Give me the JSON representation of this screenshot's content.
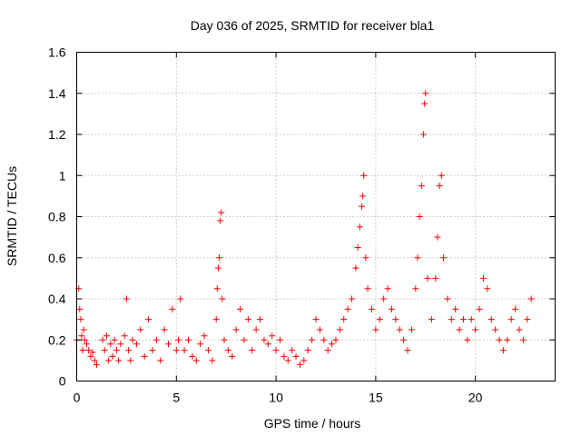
{
  "chart_data": {
    "type": "scatter",
    "title": "Day 036 of 2025, SRMTID for receiver bla1",
    "xlabel": "GPS time / hours",
    "ylabel": "SRMTID / TECUs",
    "xlim": [
      0,
      24
    ],
    "ylim": [
      0,
      1.6
    ],
    "xticks": [
      0,
      5,
      10,
      15,
      20
    ],
    "xtick_labels": [
      "0",
      "5",
      "10",
      "15",
      "20"
    ],
    "yticks": [
      0,
      0.2,
      0.4,
      0.6,
      0.8,
      1.0,
      1.2,
      1.4,
      1.6
    ],
    "ytick_labels": [
      "0",
      "0.2",
      "0.4",
      "0.6",
      "0.8",
      "1",
      "1.2",
      "1.4",
      "1.6"
    ],
    "grid": true,
    "marker": "+",
    "color": "#ff0000",
    "series": [
      {
        "name": "SRMTID",
        "x": [
          0.0,
          0.1,
          0.15,
          0.2,
          0.25,
          0.3,
          0.35,
          0.4,
          0.5,
          0.6,
          0.7,
          0.8,
          0.9,
          1.0,
          1.3,
          1.4,
          1.5,
          1.6,
          1.7,
          1.8,
          1.9,
          2.0,
          2.1,
          2.2,
          2.4,
          2.5,
          2.6,
          2.7,
          2.8,
          3.0,
          3.2,
          3.4,
          3.6,
          3.8,
          4.0,
          4.2,
          4.4,
          4.6,
          4.8,
          5.0,
          5.1,
          5.2,
          5.4,
          5.6,
          5.8,
          6.0,
          6.2,
          6.4,
          6.6,
          6.8,
          7.0,
          7.05,
          7.1,
          7.15,
          7.2,
          7.25,
          7.3,
          7.4,
          7.6,
          7.8,
          8.0,
          8.2,
          8.4,
          8.6,
          8.8,
          9.0,
          9.2,
          9.4,
          9.6,
          9.8,
          10.0,
          10.2,
          10.4,
          10.6,
          10.8,
          11.0,
          11.2,
          11.4,
          11.6,
          11.8,
          12.0,
          12.2,
          12.4,
          12.6,
          12.8,
          13.0,
          13.2,
          13.4,
          13.6,
          13.8,
          14.0,
          14.1,
          14.2,
          14.3,
          14.35,
          14.4,
          14.5,
          14.6,
          14.8,
          15.0,
          15.2,
          15.4,
          15.6,
          15.8,
          16.0,
          16.2,
          16.4,
          16.6,
          16.8,
          17.0,
          17.1,
          17.2,
          17.3,
          17.4,
          17.45,
          17.5,
          17.6,
          17.8,
          18.0,
          18.1,
          18.2,
          18.3,
          18.4,
          18.6,
          18.8,
          19.0,
          19.2,
          19.4,
          19.6,
          19.8,
          20.0,
          20.2,
          20.4,
          20.6,
          20.8,
          21.0,
          21.2,
          21.4,
          21.6,
          21.8,
          22.0,
          22.2,
          22.4,
          22.6,
          22.8
        ],
        "y": [
          0.2,
          0.45,
          0.35,
          0.3,
          0.22,
          0.15,
          0.25,
          0.2,
          0.18,
          0.15,
          0.12,
          0.14,
          0.1,
          0.08,
          0.2,
          0.15,
          0.22,
          0.1,
          0.18,
          0.12,
          0.2,
          0.15,
          0.1,
          0.18,
          0.22,
          0.4,
          0.15,
          0.1,
          0.2,
          0.18,
          0.25,
          0.12,
          0.3,
          0.15,
          0.2,
          0.1,
          0.25,
          0.18,
          0.35,
          0.15,
          0.2,
          0.4,
          0.15,
          0.2,
          0.12,
          0.1,
          0.18,
          0.22,
          0.15,
          0.1,
          0.3,
          0.45,
          0.55,
          0.6,
          0.78,
          0.82,
          0.4,
          0.2,
          0.15,
          0.12,
          0.25,
          0.35,
          0.2,
          0.3,
          0.15,
          0.25,
          0.3,
          0.2,
          0.18,
          0.22,
          0.15,
          0.2,
          0.12,
          0.1,
          0.15,
          0.12,
          0.08,
          0.1,
          0.15,
          0.2,
          0.3,
          0.25,
          0.2,
          0.15,
          0.18,
          0.2,
          0.25,
          0.3,
          0.35,
          0.4,
          0.55,
          0.65,
          0.75,
          0.85,
          0.9,
          1.0,
          0.6,
          0.45,
          0.35,
          0.25,
          0.3,
          0.4,
          0.45,
          0.35,
          0.3,
          0.25,
          0.2,
          0.15,
          0.25,
          0.45,
          0.6,
          0.8,
          0.95,
          1.2,
          1.35,
          1.4,
          0.5,
          0.3,
          0.5,
          0.7,
          0.95,
          1.0,
          0.6,
          0.4,
          0.3,
          0.35,
          0.25,
          0.3,
          0.2,
          0.3,
          0.25,
          0.35,
          0.5,
          0.45,
          0.3,
          0.25,
          0.2,
          0.15,
          0.2,
          0.3,
          0.35,
          0.25,
          0.2,
          0.3,
          0.4
        ]
      }
    ]
  }
}
